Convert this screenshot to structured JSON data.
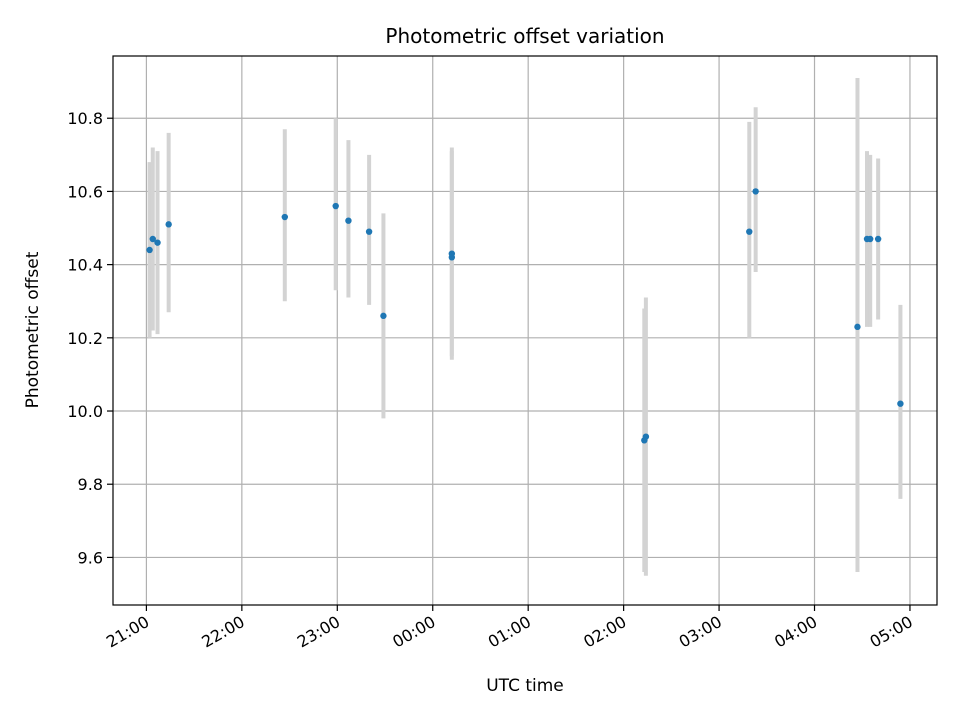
{
  "chart_data": {
    "type": "scatter",
    "title": "Photometric offset variation",
    "xlabel": "UTC time",
    "ylabel": "Photometric offset",
    "grid": true,
    "x_axis_type": "time",
    "xlim": [
      "20:39",
      "05:17"
    ],
    "ylim": [
      9.47,
      10.97
    ],
    "xticks": [
      "21:00",
      "22:00",
      "23:00",
      "00:00",
      "01:00",
      "02:00",
      "03:00",
      "04:00",
      "05:00"
    ],
    "yticks": [
      9.6,
      9.8,
      10.0,
      10.2,
      10.4,
      10.6,
      10.8
    ],
    "colors": {
      "marker": "#1f77b4",
      "errorbar": "#d3d3d3",
      "grid": "#b0b0b0"
    },
    "points": [
      {
        "time": "21:02",
        "y": 10.44,
        "ylow": 10.2,
        "yhigh": 10.68
      },
      {
        "time": "21:04",
        "y": 10.47,
        "ylow": 10.22,
        "yhigh": 10.72
      },
      {
        "time": "21:07",
        "y": 10.46,
        "ylow": 10.21,
        "yhigh": 10.71
      },
      {
        "time": "21:14",
        "y": 10.51,
        "ylow": 10.27,
        "yhigh": 10.76
      },
      {
        "time": "22:27",
        "y": 10.53,
        "ylow": 10.3,
        "yhigh": 10.77
      },
      {
        "time": "22:59",
        "y": 10.56,
        "ylow": 10.33,
        "yhigh": 10.8
      },
      {
        "time": "23:07",
        "y": 10.52,
        "ylow": 10.31,
        "yhigh": 10.74
      },
      {
        "time": "23:20",
        "y": 10.49,
        "ylow": 10.29,
        "yhigh": 10.7
      },
      {
        "time": "23:29",
        "y": 10.26,
        "ylow": 9.98,
        "yhigh": 10.54
      },
      {
        "time": "00:12",
        "y": 10.42,
        "ylow": 10.14,
        "yhigh": 10.71
      },
      {
        "time": "00:12",
        "y": 10.43,
        "ylow": 10.15,
        "yhigh": 10.72
      },
      {
        "time": "02:13",
        "y": 9.92,
        "ylow": 9.56,
        "yhigh": 10.28
      },
      {
        "time": "02:14",
        "y": 9.93,
        "ylow": 9.55,
        "yhigh": 10.31
      },
      {
        "time": "03:19",
        "y": 10.49,
        "ylow": 10.2,
        "yhigh": 10.79
      },
      {
        "time": "03:23",
        "y": 10.6,
        "ylow": 10.38,
        "yhigh": 10.83
      },
      {
        "time": "04:27",
        "y": 10.23,
        "ylow": 9.56,
        "yhigh": 10.91
      },
      {
        "time": "04:33",
        "y": 10.47,
        "ylow": 10.23,
        "yhigh": 10.71
      },
      {
        "time": "04:35",
        "y": 10.47,
        "ylow": 10.23,
        "yhigh": 10.7
      },
      {
        "time": "04:40",
        "y": 10.47,
        "ylow": 10.25,
        "yhigh": 10.69
      },
      {
        "time": "04:54",
        "y": 10.02,
        "ylow": 9.76,
        "yhigh": 10.29
      }
    ]
  }
}
